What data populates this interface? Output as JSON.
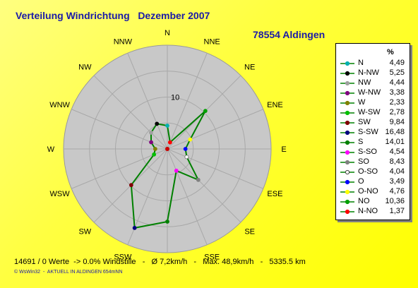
{
  "chart_data": {
    "type": "radar",
    "title": "Verteilung Windrichtung   Dezember 2007",
    "subtitle": "78554 Aldingen",
    "directions": [
      "N",
      "NNE",
      "NE",
      "ENE",
      "E",
      "ESE",
      "SE",
      "SSE",
      "S",
      "SSW",
      "SW",
      "WSW",
      "W",
      "WNW",
      "NW",
      "NNW"
    ],
    "tick_label": "10",
    "max_value": 20,
    "legend_header": "%",
    "series": [
      {
        "name": "N",
        "direction": "N",
        "value": 4.49,
        "display": "4,49",
        "color": "#00b0b0"
      },
      {
        "name": "N-NW",
        "direction": "NNW",
        "value": 5.25,
        "display": "5,25",
        "color": "#000000"
      },
      {
        "name": "NW",
        "direction": "NW",
        "value": 4.44,
        "display": "4,44",
        "color": "#a0a0a0"
      },
      {
        "name": "W-NW",
        "direction": "WNW",
        "value": 3.38,
        "display": "3,38",
        "color": "#800080"
      },
      {
        "name": "W",
        "direction": "W",
        "value": 2.33,
        "display": "2,33",
        "color": "#808000"
      },
      {
        "name": "W-SW",
        "direction": "WSW",
        "value": 2.78,
        "display": "2,78",
        "color": "#00c000"
      },
      {
        "name": "SW",
        "direction": "SW",
        "value": 9.84,
        "display": "9,84",
        "color": "#800000"
      },
      {
        "name": "S-SW",
        "direction": "SSW",
        "value": 16.48,
        "display": "16,48",
        "color": "#000080"
      },
      {
        "name": "S",
        "direction": "S",
        "value": 14.01,
        "display": "14,01",
        "color": "#008000"
      },
      {
        "name": "S-SO",
        "direction": "SSE",
        "value": 4.54,
        "display": "4,54",
        "color": "#ff00ff"
      },
      {
        "name": "SO",
        "direction": "SE",
        "value": 8.43,
        "display": "8,43",
        "color": "#808080"
      },
      {
        "name": "O-SO",
        "direction": "ESE",
        "value": 4.04,
        "display": "4,04",
        "color": "#ffffff"
      },
      {
        "name": "O",
        "direction": "E",
        "value": 3.49,
        "display": "3,49",
        "color": "#0000ff"
      },
      {
        "name": "O-NO",
        "direction": "ENE",
        "value": 4.76,
        "display": "4,76",
        "color": "#ffff00"
      },
      {
        "name": "NO",
        "direction": "NE",
        "value": 10.36,
        "display": "10,36",
        "color": "#00a000"
      },
      {
        "name": "N-NO",
        "direction": "NNE",
        "value": 1.37,
        "display": "1,37",
        "color": "#ff0000"
      }
    ],
    "line_color": "#008000",
    "grid": true
  },
  "footer": "14691 / 0 Werte  -> 0.0% Windstille   -   Ø 7,2km/h   -   Max. 48,9km/h   -   5335.5 km",
  "credit": "© WsWin32  -  AKTUELL IN ALDINGEN 654mNN"
}
